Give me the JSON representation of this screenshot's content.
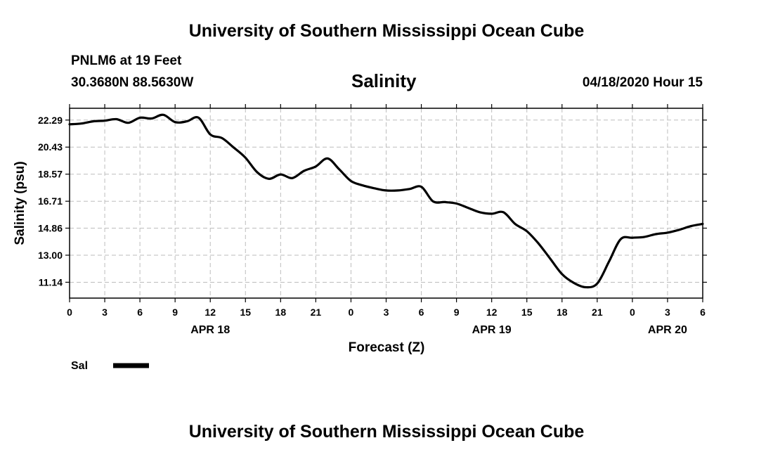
{
  "header": {
    "title": "University of Southern Mississippi Ocean Cube",
    "station": "PNLM6 at 19 Feet",
    "coords": "30.3680N 88.5630W",
    "plot_title": "Salinity",
    "date": "04/18/2020 Hour 15"
  },
  "footer": {
    "title": "University of Southern Mississippi Ocean Cube"
  },
  "chart_data": {
    "type": "line",
    "title": "Salinity",
    "xlabel": "Forecast (Z)",
    "ylabel": "Salinity (psu)",
    "xlim": [
      0,
      54
    ],
    "ylim": [
      10.05,
      23.1
    ],
    "xticks": [
      {
        "x": 0,
        "label": "0"
      },
      {
        "x": 3,
        "label": "3"
      },
      {
        "x": 6,
        "label": "6"
      },
      {
        "x": 9,
        "label": "9"
      },
      {
        "x": 12,
        "label": "12"
      },
      {
        "x": 15,
        "label": "15"
      },
      {
        "x": 18,
        "label": "18"
      },
      {
        "x": 21,
        "label": "21"
      },
      {
        "x": 24,
        "label": "0"
      },
      {
        "x": 27,
        "label": "3"
      },
      {
        "x": 30,
        "label": "6"
      },
      {
        "x": 33,
        "label": "9"
      },
      {
        "x": 36,
        "label": "12"
      },
      {
        "x": 39,
        "label": "15"
      },
      {
        "x": 42,
        "label": "18"
      },
      {
        "x": 45,
        "label": "21"
      },
      {
        "x": 48,
        "label": "0"
      },
      {
        "x": 51,
        "label": "3"
      },
      {
        "x": 54,
        "label": "6"
      }
    ],
    "yticks": [
      11.14,
      13.0,
      14.86,
      16.71,
      18.57,
      20.43,
      22.29
    ],
    "ytick_labels": [
      "11.14",
      "13.00",
      "14.86",
      "16.71",
      "18.57",
      "20.43",
      "22.29"
    ],
    "date_labels": [
      {
        "x": 12,
        "label": "APR 18"
      },
      {
        "x": 36,
        "label": "APR 19"
      },
      {
        "x": 51,
        "label": "APR 20"
      }
    ],
    "grid": true,
    "legend": "bottom-left",
    "series": [
      {
        "name": "Sal",
        "x": [
          0,
          1,
          2,
          3,
          4,
          5,
          6,
          7,
          8,
          9,
          10,
          11,
          12,
          13,
          14,
          15,
          16,
          17,
          18,
          19,
          20,
          21,
          22,
          23,
          24,
          25,
          26,
          27,
          28,
          29,
          30,
          31,
          32,
          33,
          34,
          35,
          36,
          37,
          38,
          39,
          40,
          41,
          42,
          43,
          44,
          45,
          46,
          47,
          48,
          49,
          50,
          51,
          52,
          53,
          54
        ],
        "values": [
          22.0,
          22.05,
          22.2,
          22.25,
          22.35,
          22.1,
          22.45,
          22.4,
          22.65,
          22.15,
          22.2,
          22.45,
          21.3,
          21.05,
          20.4,
          19.7,
          18.7,
          18.25,
          18.55,
          18.3,
          18.8,
          19.1,
          19.65,
          18.9,
          18.1,
          17.8,
          17.6,
          17.45,
          17.45,
          17.55,
          17.7,
          16.7,
          16.65,
          16.55,
          16.25,
          15.95,
          15.85,
          15.95,
          15.15,
          14.65,
          13.8,
          12.75,
          11.7,
          11.1,
          10.8,
          11.05,
          12.55,
          14.1,
          14.2,
          14.25,
          14.45,
          14.55,
          14.75,
          15.0,
          15.15
        ]
      }
    ]
  }
}
